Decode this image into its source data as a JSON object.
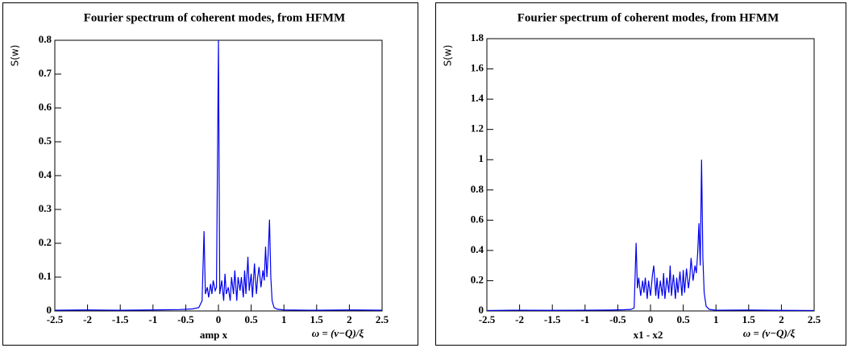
{
  "chart_data": [
    {
      "type": "line",
      "title": "Fourier spectrum of coherent modes, from HFMM",
      "ylabel": "S(w)",
      "xlabel": "ω = (ν−Q)/ξ",
      "annotation": "amp x",
      "color": "#0000ee",
      "xlim": [
        -2.5,
        2.5
      ],
      "ylim": [
        0,
        0.8
      ],
      "xticks": [
        -2.5,
        -2,
        -1.5,
        -1,
        -0.5,
        0,
        0.5,
        1,
        1.5,
        2,
        2.5
      ],
      "yticks": [
        0,
        0.1,
        0.2,
        0.3,
        0.4,
        0.5,
        0.6,
        0.7,
        0.8
      ],
      "x": [
        -2.5,
        -2.0,
        -1.5,
        -1.0,
        -0.6,
        -0.4,
        -0.3,
        -0.25,
        -0.22,
        -0.2,
        -0.17,
        -0.15,
        -0.12,
        -0.1,
        -0.08,
        -0.05,
        -0.03,
        0,
        0.02,
        0.05,
        0.08,
        0.1,
        0.12,
        0.15,
        0.18,
        0.2,
        0.23,
        0.25,
        0.28,
        0.3,
        0.33,
        0.35,
        0.38,
        0.4,
        0.42,
        0.45,
        0.47,
        0.5,
        0.52,
        0.55,
        0.58,
        0.6,
        0.62,
        0.65,
        0.68,
        0.7,
        0.72,
        0.74,
        0.76,
        0.78,
        0.8,
        0.82,
        0.85,
        0.9,
        1.0,
        1.5,
        2.0,
        2.5
      ],
      "values": [
        0.002,
        0.003,
        0.002,
        0.003,
        0.004,
        0.006,
        0.01,
        0.03,
        0.236,
        0.05,
        0.07,
        0.04,
        0.08,
        0.05,
        0.09,
        0.06,
        0.07,
        0.8,
        0.05,
        0.09,
        0.03,
        0.11,
        0.05,
        0.07,
        0.03,
        0.1,
        0.05,
        0.12,
        0.03,
        0.1,
        0.06,
        0.1,
        0.04,
        0.12,
        0.05,
        0.16,
        0.06,
        0.11,
        0.04,
        0.14,
        0.05,
        0.1,
        0.13,
        0.07,
        0.12,
        0.09,
        0.19,
        0.1,
        0.17,
        0.27,
        0.1,
        0.03,
        0.01,
        0.005,
        0.003,
        0.002,
        0.003,
        0.002
      ]
    },
    {
      "type": "line",
      "title": "Fourier spectrum of coherent modes, from HFMM",
      "ylabel": "S(w)",
      "xlabel": "ω = (ν−Q)/ξ",
      "annotation": "x1 - x2",
      "color": "#0000ee",
      "xlim": [
        -2.5,
        2.5
      ],
      "ylim": [
        0,
        1.8
      ],
      "xticks": [
        -2.5,
        -2,
        -1.5,
        -1,
        -0.5,
        0,
        0.5,
        1,
        1.5,
        2,
        2.5
      ],
      "yticks": [
        0,
        0.2,
        0.4,
        0.6,
        0.8,
        1,
        1.2,
        1.4,
        1.6,
        1.8
      ],
      "x": [
        -2.5,
        -2.0,
        -1.5,
        -1.0,
        -0.6,
        -0.4,
        -0.3,
        -0.25,
        -0.22,
        -0.2,
        -0.18,
        -0.15,
        -0.12,
        -0.1,
        -0.08,
        -0.05,
        -0.03,
        0,
        0.03,
        0.05,
        0.08,
        0.1,
        0.12,
        0.15,
        0.18,
        0.2,
        0.22,
        0.25,
        0.28,
        0.3,
        0.32,
        0.35,
        0.38,
        0.4,
        0.42,
        0.45,
        0.48,
        0.5,
        0.52,
        0.55,
        0.58,
        0.6,
        0.62,
        0.65,
        0.68,
        0.7,
        0.72,
        0.74,
        0.76,
        0.78,
        0.8,
        0.82,
        0.85,
        0.9,
        1.0,
        1.5,
        2.0,
        2.5
      ],
      "values": [
        0.003,
        0.005,
        0.004,
        0.005,
        0.006,
        0.008,
        0.01,
        0.02,
        0.45,
        0.15,
        0.22,
        0.1,
        0.2,
        0.12,
        0.22,
        0.08,
        0.2,
        0.1,
        0.24,
        0.3,
        0.1,
        0.22,
        0.08,
        0.2,
        0.1,
        0.25,
        0.08,
        0.22,
        0.12,
        0.3,
        0.1,
        0.24,
        0.08,
        0.22,
        0.12,
        0.26,
        0.1,
        0.27,
        0.12,
        0.28,
        0.15,
        0.22,
        0.35,
        0.2,
        0.3,
        0.25,
        0.38,
        0.58,
        0.3,
        1.0,
        0.35,
        0.12,
        0.03,
        0.01,
        0.005,
        0.006,
        0.004,
        0.003
      ]
    }
  ]
}
